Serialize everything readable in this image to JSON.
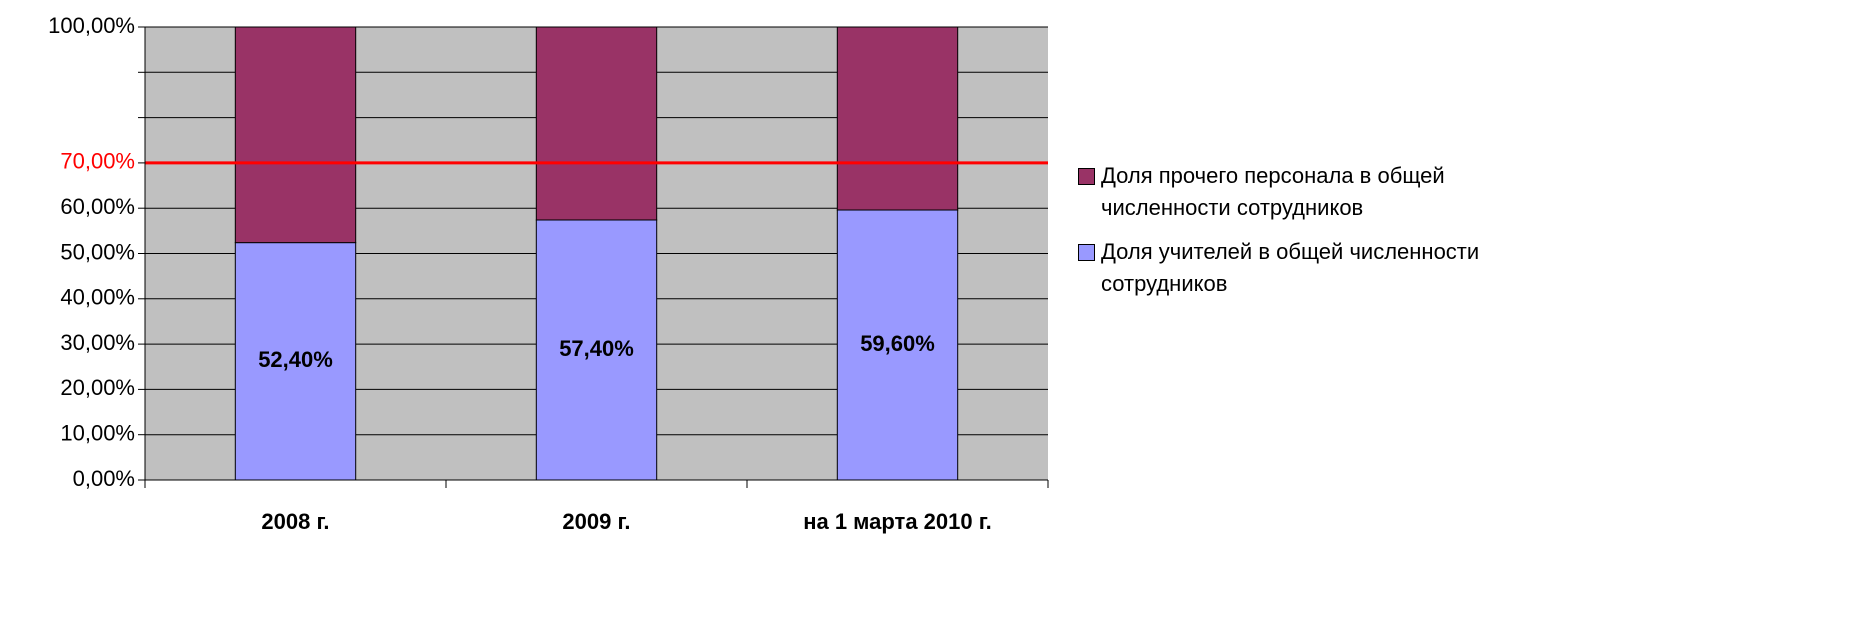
{
  "chart_data": {
    "type": "stacked_bar",
    "categories": [
      "2008 г.",
      "2009 г.",
      "на 1 марта 2010 г."
    ],
    "series": [
      {
        "name": "Доля учителей в общей численности сотрудников",
        "color": "#9999ff",
        "values": [
          52.4,
          57.4,
          59.6
        ],
        "value_labels": [
          "52,40%",
          "57,40%",
          "59,60%"
        ]
      },
      {
        "name": "Доля прочего персонала в общей численности сотрудников",
        "color": "#993366",
        "values": [
          47.6,
          42.6,
          40.4
        ]
      }
    ],
    "ylim": [
      0,
      100
    ],
    "yticks": [
      {
        "value": 0,
        "label": "0,00%"
      },
      {
        "value": 10,
        "label": "10,00%"
      },
      {
        "value": 20,
        "label": "20,00%"
      },
      {
        "value": 30,
        "label": "30,00%"
      },
      {
        "value": 40,
        "label": "40,00%"
      },
      {
        "value": 50,
        "label": "50,00%"
      },
      {
        "value": 60,
        "label": "60,00%"
      },
      {
        "value": 70,
        "label": "70,00%"
      },
      {
        "value": 80,
        "label": null
      },
      {
        "value": 90,
        "label": null
      },
      {
        "value": 100,
        "label": "100,00%"
      }
    ],
    "reference_line": {
      "value": 70,
      "color": "#ff0000"
    },
    "grid": true,
    "legend": "right"
  }
}
